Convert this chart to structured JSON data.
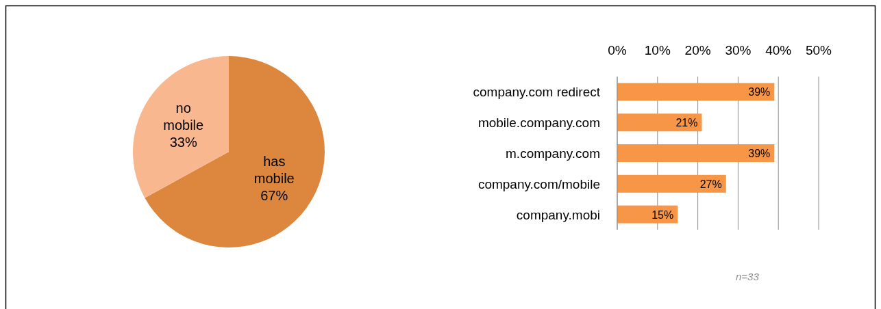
{
  "chart_data": [
    {
      "type": "pie",
      "categories": [
        "has mobile",
        "no mobile"
      ],
      "values": [
        67,
        33
      ],
      "colors": [
        "#dc863e",
        "#f8b78f"
      ],
      "value_labels": [
        "67%",
        "33%"
      ]
    },
    {
      "type": "bar",
      "orientation": "horizontal",
      "categories": [
        "company.com redirect",
        "mobile.company.com",
        "m.company.com",
        "company.com/mobile",
        "company.mobi"
      ],
      "values": [
        39,
        21,
        39,
        27,
        15
      ],
      "color": "#f79646",
      "value_labels": [
        "39%",
        "21%",
        "39%",
        "27%",
        "15%"
      ],
      "xlim": [
        0,
        50
      ],
      "xticks": [
        {
          "value": 0,
          "label": "0%"
        },
        {
          "value": 10,
          "label": "10%"
        },
        {
          "value": 20,
          "label": "20%"
        },
        {
          "value": 30,
          "label": "30%"
        },
        {
          "value": 40,
          "label": "40%"
        },
        {
          "value": 50,
          "label": "50%"
        }
      ],
      "grid": "x",
      "annotations": [
        "n=33"
      ]
    }
  ]
}
